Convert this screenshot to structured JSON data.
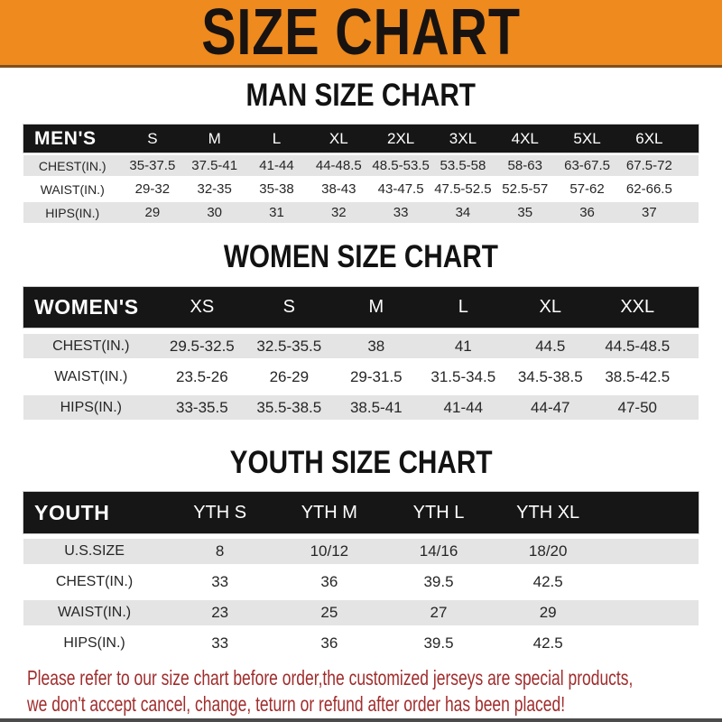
{
  "banner": {
    "title": "SIZE CHART",
    "bg_color": "#EE8A1E",
    "text_color": "#181310"
  },
  "sections": {
    "men": {
      "heading": "MAN SIZE CHART"
    },
    "women": {
      "heading": "WOMEN SIZE CHART"
    },
    "youth": {
      "heading": "YOUTH SIZE CHART"
    }
  },
  "tables": {
    "men": {
      "label": "MEN'S",
      "columns": [
        "S",
        "M",
        "L",
        "XL",
        "2XL",
        "3XL",
        "4XL",
        "5XL",
        "6XL"
      ],
      "rows": [
        {
          "label": "CHEST(IN.)",
          "values": [
            "35-37.5",
            "37.5-41",
            "41-44",
            "44-48.5",
            "48.5-53.5",
            "53.5-58",
            "58-63",
            "63-67.5",
            "67.5-72"
          ]
        },
        {
          "label": "WAIST(IN.)",
          "values": [
            "29-32",
            "32-35",
            "35-38",
            "38-43",
            "43-47.5",
            "47.5-52.5",
            "52.5-57",
            "57-62",
            "62-66.5"
          ]
        },
        {
          "label": "HIPS(IN.)",
          "values": [
            "29",
            "30",
            "31",
            "32",
            "33",
            "34",
            "35",
            "36",
            "37"
          ]
        }
      ]
    },
    "women": {
      "label": "WOMEN'S",
      "columns": [
        "XS",
        "S",
        "M",
        "L",
        "XL",
        "XXL"
      ],
      "rows": [
        {
          "label": "CHEST(IN.)",
          "values": [
            "29.5-32.5",
            "32.5-35.5",
            "38",
            "41",
            "44.5",
            "44.5-48.5"
          ]
        },
        {
          "label": "WAIST(IN.)",
          "values": [
            "23.5-26",
            "26-29",
            "29-31.5",
            "31.5-34.5",
            "34.5-38.5",
            "38.5-42.5"
          ]
        },
        {
          "label": "HIPS(IN.)",
          "values": [
            "33-35.5",
            "35.5-38.5",
            "38.5-41",
            "41-44",
            "44-47",
            "47-50"
          ]
        }
      ]
    },
    "youth": {
      "label": "YOUTH",
      "columns": [
        "YTH S",
        "YTH M",
        "YTH L",
        "YTH XL"
      ],
      "rows": [
        {
          "label": "U.S.SIZE",
          "values": [
            "8",
            "10/12",
            "14/16",
            "18/20"
          ]
        },
        {
          "label": "CHEST(IN.)",
          "values": [
            "33",
            "36",
            "39.5",
            "42.5"
          ]
        },
        {
          "label": "WAIST(IN.)",
          "values": [
            "23",
            "25",
            "27",
            "29"
          ]
        },
        {
          "label": "HIPS(IN.)",
          "values": [
            "33",
            "36",
            "39.5",
            "42.5"
          ]
        }
      ]
    }
  },
  "footer": {
    "line1": "Please refer to our size chart before order,the customized jerseys are special products,",
    "line2": "we don't accept cancel, change, teturn or refund after order has been placed!",
    "text_color": "#A12D2D"
  },
  "colors": {
    "header_bar": "#161616",
    "row_alt_gray": "#E4E4E4",
    "accent_orange": "#EE8A1E"
  }
}
